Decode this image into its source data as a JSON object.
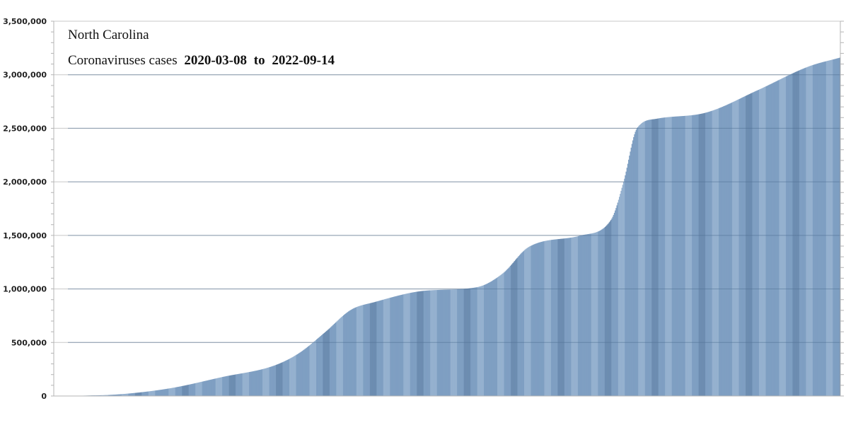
{
  "chart_data": {
    "type": "bar",
    "title_line1": "North Carolina",
    "title_line2_prefix": "Coronaviruses cases",
    "start_date": "2020-03-08",
    "to_word": "to",
    "end_date": "2022-09-14",
    "xlabel": "",
    "ylabel": "",
    "ylim": [
      0,
      3500000
    ],
    "yticks": [
      0,
      500000,
      1000000,
      1500000,
      2000000,
      2500000,
      3000000,
      3500000
    ],
    "ytick_labels": [
      "0",
      "500,000",
      "1,000,000",
      "1,500,000",
      "2,000,000",
      "2,500,000",
      "3,000,000",
      "3,500,000"
    ],
    "grid": true,
    "series": [
      {
        "values_description_points": [
          [
            "2020-03-08",
            0
          ],
          [
            "2020-05-08",
            16000
          ],
          [
            "2020-07-08",
            73000
          ],
          [
            "2020-09-08",
            178000
          ],
          [
            "2020-11-08",
            283000
          ],
          [
            "2020-12-08",
            400000
          ],
          [
            "2021-01-08",
            595000
          ],
          [
            "2021-02-08",
            805000
          ],
          [
            "2021-03-08",
            877000
          ],
          [
            "2021-05-08",
            984000
          ],
          [
            "2021-07-08",
            1016000
          ],
          [
            "2021-08-08",
            1145000
          ],
          [
            "2021-09-08",
            1392000
          ],
          [
            "2021-11-08",
            1497000
          ],
          [
            "2021-12-15",
            1645000
          ],
          [
            "2021-12-30",
            2000000
          ],
          [
            "2022-01-15",
            2500000
          ],
          [
            "2022-02-08",
            2590000
          ],
          [
            "2022-04-08",
            2648000
          ],
          [
            "2022-06-08",
            2856000
          ],
          [
            "2022-08-08",
            3078000
          ],
          [
            "2022-09-14",
            3160000
          ]
        ]
      }
    ],
    "colors": {
      "bar": "#7f9fc2",
      "bar_light": "#95b1cf",
      "bar_dark": "#6d8db1",
      "grid": "#c8c8c8",
      "grid_mid": "#a9b4c0",
      "axis": "#b5b5b5"
    }
  }
}
